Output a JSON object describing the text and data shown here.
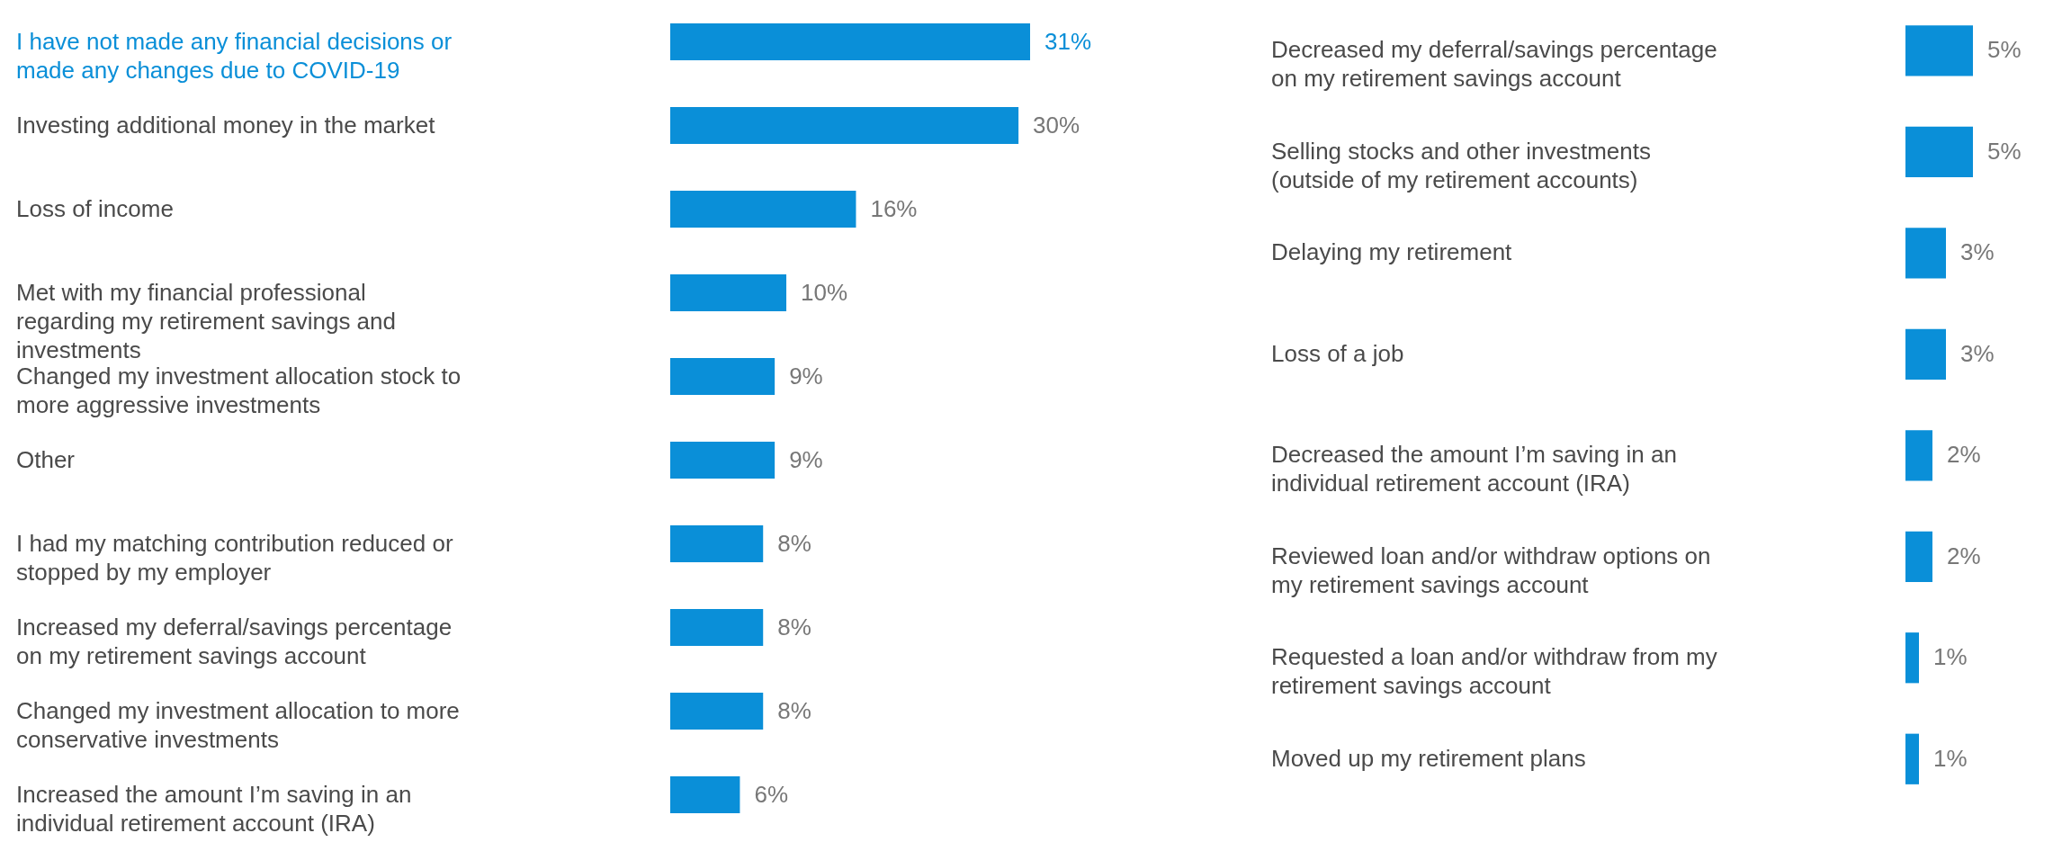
{
  "chart_data": [
    {
      "type": "bar",
      "orientation": "horizontal",
      "color": "#0a8fd8",
      "categories": [
        "I have not made any financial decisions or made any changes due to COVID-19",
        "Investing additional money in the market",
        "Loss of income",
        "Met with my financial professional regarding my retirement savings and investments",
        "Changed my investment allocation stock to more aggressive investments",
        "Other",
        "I had my matching contribution reduced or stopped by my employer",
        "Increased my deferral/savings percentage on my retirement savings account",
        "Changed my investment allocation to more conservative investments",
        "Increased the amount I’m saving in an individual retirement account (IRA)"
      ],
      "values": [
        31,
        30,
        16,
        10,
        9,
        9,
        8,
        8,
        8,
        6
      ],
      "value_labels": [
        "31%",
        "30%",
        "16%",
        "10%",
        "9%",
        "9%",
        "8%",
        "8%",
        "8%",
        "6%"
      ]
    },
    {
      "type": "bar",
      "orientation": "horizontal",
      "color": "#0a8fd8",
      "categories": [
        "Decreased my deferral/savings percentage on my retirement savings account",
        "Selling stocks and other investments (outside of my retirement accounts)",
        "Delaying my retirement",
        "Loss of a job",
        "Decreased the amount I’m saving in an individual retirement account (IRA)",
        "Reviewed loan and/or withdraw options on my retirement savings account",
        "Requested a loan and/or withdraw from my retirement savings account",
        "Moved up my retirement plans"
      ],
      "values": [
        5,
        5,
        3,
        3,
        2,
        2,
        1,
        1
      ],
      "value_labels": [
        "5%",
        "5%",
        "3%",
        "3%",
        "2%",
        "2%",
        "1%",
        "1%"
      ]
    }
  ]
}
